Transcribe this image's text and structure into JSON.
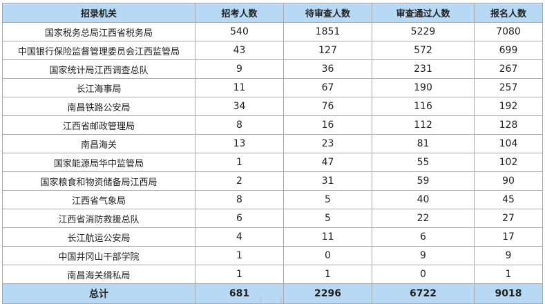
{
  "table": {
    "headers": [
      "招录机关",
      "招考人数",
      "待审查人数",
      "审查通过人数",
      "报名人数"
    ],
    "rows": [
      [
        "国家税务总局江西省税务局",
        "540",
        "1851",
        "5229",
        "7080"
      ],
      [
        "中国银行保险监督管理委员会江西监管局",
        "43",
        "127",
        "572",
        "699"
      ],
      [
        "国家统计局江西调查总队",
        "9",
        "36",
        "231",
        "267"
      ],
      [
        "长江海事局",
        "11",
        "67",
        "190",
        "257"
      ],
      [
        "南昌铁路公安局",
        "34",
        "76",
        "116",
        "192"
      ],
      [
        "江西省邮政管理局",
        "8",
        "16",
        "112",
        "128"
      ],
      [
        "南昌海关",
        "13",
        "23",
        "81",
        "104"
      ],
      [
        "国家能源局华中监管局",
        "1",
        "47",
        "55",
        "102"
      ],
      [
        "国家粮食和物资储备局江西局",
        "2",
        "31",
        "59",
        "90"
      ],
      [
        "江西省气象局",
        "8",
        "5",
        "40",
        "45"
      ],
      [
        "江西省消防救援总队",
        "6",
        "5",
        "22",
        "27"
      ],
      [
        "长江航运公安局",
        "4",
        "11",
        "6",
        "17"
      ],
      [
        "中国井冈山干部学院",
        "1",
        "0",
        "9",
        "9"
      ],
      [
        "南昌海关缉私局",
        "1",
        "1",
        "0",
        "1"
      ]
    ],
    "total": [
      "总计",
      "681",
      "2296",
      "6722",
      "9018"
    ]
  },
  "colors": {
    "header_bg": "#b7d9f5",
    "border": "#a9a9a9",
    "text": "#222222"
  }
}
